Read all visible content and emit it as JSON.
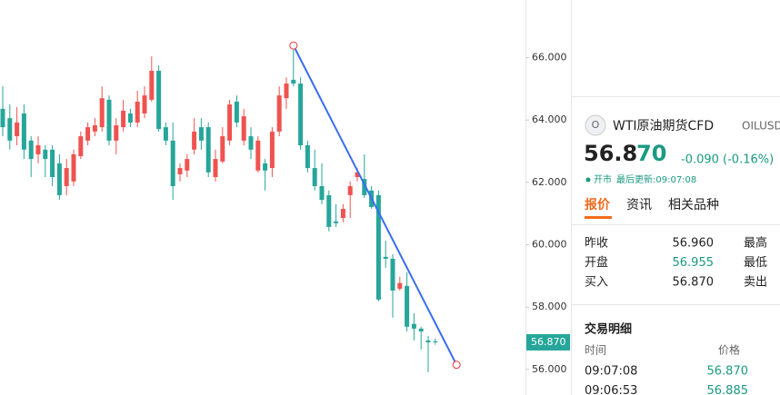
{
  "chart": {
    "type": "candlestick",
    "up_color": "#ef5350",
    "down_color": "#26a69a",
    "ylim": [
      55.18,
      67.85
    ],
    "yticks": [
      {
        "value": 56,
        "label": "56.000"
      },
      {
        "value": 58,
        "label": "58.000"
      },
      {
        "value": 60,
        "label": "60.000"
      },
      {
        "value": 62,
        "label": "62.000"
      },
      {
        "value": 64,
        "label": "64.000"
      },
      {
        "value": 66,
        "label": "66.000"
      }
    ],
    "last_price": {
      "value": 56.87,
      "label": "56.870"
    },
    "trendline": {
      "color": "#3b6cf0",
      "start": {
        "index": 41,
        "price": 66.39
      },
      "end": {
        "index": 64,
        "price": 56.15
      }
    },
    "candles": [
      [
        64.36,
        65.08,
        63.48,
        63.77
      ],
      [
        64.06,
        64.5,
        63.05,
        63.34
      ],
      [
        63.48,
        64.41,
        63.19,
        63.92
      ],
      [
        64.21,
        64.5,
        62.75,
        63.05
      ],
      [
        63.34,
        63.48,
        62.17,
        62.75
      ],
      [
        62.9,
        63.48,
        62.61,
        63.19
      ],
      [
        63.05,
        63.19,
        62.17,
        62.75
      ],
      [
        63.05,
        63.19,
        61.88,
        62.17
      ],
      [
        62.61,
        62.9,
        61.44,
        61.59
      ],
      [
        61.88,
        62.75,
        61.59,
        62.46
      ],
      [
        62.03,
        63.05,
        61.88,
        62.9
      ],
      [
        62.84,
        63.63,
        62.75,
        63.48
      ],
      [
        63.34,
        63.92,
        63.19,
        63.77
      ],
      [
        63.63,
        64.06,
        63.48,
        63.83
      ],
      [
        63.77,
        65.08,
        63.63,
        64.7
      ],
      [
        64.65,
        64.79,
        63.19,
        63.34
      ],
      [
        63.34,
        64.06,
        62.9,
        63.83
      ],
      [
        63.77,
        64.65,
        63.63,
        64.3
      ],
      [
        64.21,
        64.36,
        63.77,
        63.92
      ],
      [
        63.92,
        64.94,
        63.77,
        64.59
      ],
      [
        64.21,
        65.08,
        64.06,
        64.79
      ],
      [
        64.65,
        66.04,
        64.59,
        65.58
      ],
      [
        65.58,
        65.75,
        63.63,
        63.71
      ],
      [
        63.77,
        63.92,
        63.19,
        63.34
      ],
      [
        63.34,
        63.92,
        61.44,
        61.88
      ],
      [
        62.26,
        62.61,
        62.03,
        62.46
      ],
      [
        62.38,
        62.9,
        62.17,
        62.75
      ],
      [
        63.05,
        64.06,
        62.9,
        63.63
      ],
      [
        63.77,
        64.06,
        63.05,
        63.34
      ],
      [
        63.77,
        63.92,
        62.17,
        62.32
      ],
      [
        62.17,
        63.05,
        62.03,
        62.75
      ],
      [
        62.67,
        63.77,
        62.61,
        63.48
      ],
      [
        63.34,
        64.65,
        63.19,
        64.5
      ],
      [
        64.59,
        64.79,
        63.77,
        63.92
      ],
      [
        63.34,
        64.36,
        63.19,
        64.12
      ],
      [
        63.48,
        63.77,
        62.75,
        63.05
      ],
      [
        62.38,
        63.48,
        62.32,
        63.34
      ],
      [
        62.61,
        62.75,
        61.74,
        62.38
      ],
      [
        62.46,
        63.77,
        62.17,
        63.63
      ],
      [
        63.63,
        65.08,
        63.48,
        64.79
      ],
      [
        64.7,
        65.37,
        64.36,
        65.17
      ],
      [
        65.29,
        66.25,
        65.08,
        65.17
      ],
      [
        65.17,
        65.37,
        63.05,
        63.19
      ],
      [
        63.19,
        63.34,
        62.32,
        62.46
      ],
      [
        62.46,
        63.05,
        61.74,
        61.88
      ],
      [
        61.88,
        62.61,
        61.3,
        61.44
      ],
      [
        61.59,
        61.74,
        60.43,
        60.57
      ],
      [
        60.75,
        61.3,
        60.57,
        60.69
      ],
      [
        60.86,
        61.3,
        60.72,
        61.15
      ],
      [
        61.59,
        62.03,
        60.86,
        61.88
      ],
      [
        62.17,
        62.46,
        62.03,
        62.32
      ],
      [
        62.11,
        62.9,
        61.5,
        61.59
      ],
      [
        61.74,
        61.88,
        61.15,
        61.21
      ],
      [
        61.59,
        61.74,
        58.18,
        58.24
      ],
      [
        59.61,
        60.13,
        59.26,
        59.55
      ],
      [
        59.55,
        59.7,
        57.66,
        58.53
      ],
      [
        58.59,
        58.97,
        58.53,
        58.77
      ],
      [
        58.68,
        59.12,
        57.22,
        57.37
      ],
      [
        57.46,
        57.8,
        56.93,
        57.31
      ],
      [
        57.31,
        57.37,
        56.64,
        57.22
      ],
      [
        56.93,
        57.08,
        55.91,
        56.87
      ],
      [
        56.9,
        56.99,
        56.79,
        56.87
      ]
    ]
  },
  "quote": {
    "icon": "O",
    "name": "WTI原油期货CFD",
    "symbol": "OILUSD",
    "price_head": "56.8",
    "price_tail": "70",
    "change": "-0.090 (-0.16%)",
    "status": "开市",
    "updated": "最后更新:09:07:08",
    "tabs": [
      "报价",
      "资讯",
      "相关品种"
    ],
    "stats": [
      [
        "昨收",
        "56.960",
        "最高"
      ],
      [
        "开盘",
        "56.955",
        "最低"
      ],
      [
        "买入",
        "56.870",
        "卖出"
      ]
    ],
    "trades_title": "交易明细",
    "trades_header": [
      "时间",
      "价格"
    ],
    "trades": [
      [
        "09:07:08",
        "56.870"
      ],
      [
        "09:06:53",
        "56.885"
      ]
    ]
  }
}
